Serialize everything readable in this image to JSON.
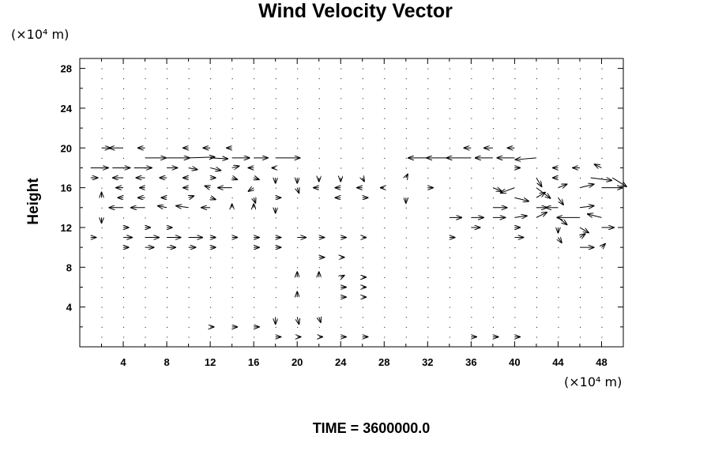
{
  "chart_data": {
    "type": "vector-field",
    "title": "Wind Velocity Vector",
    "xlabel": "",
    "ylabel": "Height",
    "x_unit": "(×10⁴ m)",
    "y_unit": "(×10⁴ m)",
    "xlim": [
      0,
      50
    ],
    "ylim": [
      0,
      29
    ],
    "x_ticks": [
      4,
      8,
      12,
      16,
      20,
      24,
      28,
      32,
      36,
      40,
      44,
      48
    ],
    "y_ticks": [
      4,
      8,
      12,
      16,
      20,
      24,
      28
    ],
    "footer": "TIME = 3600000.0",
    "grid": false,
    "vectors": [
      {
        "x": 2,
        "y": 20,
        "u": 1.0,
        "v": 0.0
      },
      {
        "x": 4,
        "y": 20,
        "u": -1.6,
        "v": 0.0
      },
      {
        "x": 6,
        "y": 19,
        "u": 2.4,
        "v": 0.0
      },
      {
        "x": 8,
        "y": 19,
        "u": 2.6,
        "v": 0.0
      },
      {
        "x": 10,
        "y": 19,
        "u": 3.0,
        "v": 0.1
      },
      {
        "x": 12,
        "y": 19,
        "u": 2.0,
        "v": -0.1
      },
      {
        "x": 14,
        "y": 19,
        "u": 2.0,
        "v": 0.0
      },
      {
        "x": 16,
        "y": 19,
        "u": 1.6,
        "v": 0.0
      },
      {
        "x": 18,
        "y": 19,
        "u": 2.8,
        "v": 0.0
      },
      {
        "x": 32,
        "y": 19,
        "u": -2.2,
        "v": 0.0
      },
      {
        "x": 34,
        "y": 19,
        "u": -2.6,
        "v": 0.0
      },
      {
        "x": 36,
        "y": 19,
        "u": -2.8,
        "v": 0.0
      },
      {
        "x": 38,
        "y": 19,
        "u": -2.0,
        "v": 0.0
      },
      {
        "x": 40,
        "y": 19,
        "u": -2.0,
        "v": 0.0
      },
      {
        "x": 42,
        "y": 19,
        "u": -2.4,
        "v": -0.2
      },
      {
        "x": 6,
        "y": 20,
        "u": -0.8,
        "v": 0.0
      },
      {
        "x": 10,
        "y": 20,
        "u": -0.6,
        "v": 0.0
      },
      {
        "x": 12,
        "y": 20,
        "u": -0.8,
        "v": 0.0
      },
      {
        "x": 14,
        "y": 20,
        "u": -0.6,
        "v": 0.0
      },
      {
        "x": 36,
        "y": 20,
        "u": -0.8,
        "v": 0.0
      },
      {
        "x": 38,
        "y": 20,
        "u": -1.0,
        "v": 0.0
      },
      {
        "x": 40,
        "y": 20,
        "u": -0.8,
        "v": 0.0
      },
      {
        "x": 1,
        "y": 18,
        "u": 2.0,
        "v": 0.0
      },
      {
        "x": 3,
        "y": 18,
        "u": 2.0,
        "v": 0.0
      },
      {
        "x": 5,
        "y": 18,
        "u": 2.0,
        "v": 0.0
      },
      {
        "x": 8,
        "y": 18,
        "u": 1.2,
        "v": 0.0
      },
      {
        "x": 10,
        "y": 18,
        "u": 1.0,
        "v": -0.2
      },
      {
        "x": 12,
        "y": 18,
        "u": 1.2,
        "v": -0.3
      },
      {
        "x": 14,
        "y": 18,
        "u": 0.8,
        "v": 0.2
      },
      {
        "x": 16,
        "y": 18,
        "u": -0.6,
        "v": 0.0
      },
      {
        "x": 18,
        "y": 18,
        "u": -0.4,
        "v": 0.0
      },
      {
        "x": 40,
        "y": 18,
        "u": 0.6,
        "v": 0.0
      },
      {
        "x": 44,
        "y": 18,
        "u": -0.6,
        "v": 0.0
      },
      {
        "x": 46,
        "y": 18,
        "u": -0.8,
        "v": 0.0
      },
      {
        "x": 48,
        "y": 18,
        "u": -0.8,
        "v": 0.4
      },
      {
        "x": 1,
        "y": 17,
        "u": 0.8,
        "v": 0.0
      },
      {
        "x": 4,
        "y": 17,
        "u": -1.2,
        "v": 0.0
      },
      {
        "x": 6,
        "y": 17,
        "u": -1.0,
        "v": 0.0
      },
      {
        "x": 8,
        "y": 17,
        "u": -0.8,
        "v": 0.0
      },
      {
        "x": 10,
        "y": 17,
        "u": -0.6,
        "v": 0.0
      },
      {
        "x": 12,
        "y": 17,
        "u": 0.6,
        "v": 0.0
      },
      {
        "x": 14,
        "y": 17,
        "u": 0.6,
        "v": -0.2
      },
      {
        "x": 16,
        "y": 17,
        "u": 0.6,
        "v": -0.2
      },
      {
        "x": 18,
        "y": 17,
        "u": 0.0,
        "v": -0.6
      },
      {
        "x": 20,
        "y": 17,
        "u": 0.0,
        "v": -0.6
      },
      {
        "x": 22,
        "y": 17,
        "u": 0.0,
        "v": -0.4
      },
      {
        "x": 24,
        "y": 17,
        "u": 0.0,
        "v": -0.4
      },
      {
        "x": 26,
        "y": 17,
        "u": 0.2,
        "v": -0.4
      },
      {
        "x": 30,
        "y": 17,
        "u": 0.2,
        "v": 0.4
      },
      {
        "x": 42,
        "y": 17,
        "u": 0.6,
        "v": -1.0
      },
      {
        "x": 44,
        "y": 17,
        "u": -0.6,
        "v": 0.0
      },
      {
        "x": 47,
        "y": 17,
        "u": 2.4,
        "v": -0.3
      },
      {
        "x": 49,
        "y": 17,
        "u": 1.6,
        "v": -1.0
      },
      {
        "x": 4,
        "y": 16,
        "u": -0.8,
        "v": 0.0
      },
      {
        "x": 6,
        "y": 16,
        "u": -0.6,
        "v": 0.0
      },
      {
        "x": 10,
        "y": 16,
        "u": -0.6,
        "v": 0.0
      },
      {
        "x": 12,
        "y": 16,
        "u": -0.6,
        "v": 0.2
      },
      {
        "x": 14,
        "y": 16,
        "u": -1.6,
        "v": 0.0
      },
      {
        "x": 16,
        "y": 16,
        "u": -0.6,
        "v": -0.4
      },
      {
        "x": 20,
        "y": 16,
        "u": 0.2,
        "v": -0.6
      },
      {
        "x": 22,
        "y": 16,
        "u": -0.6,
        "v": 0.0
      },
      {
        "x": 24,
        "y": 16,
        "u": -0.6,
        "v": 0.0
      },
      {
        "x": 26,
        "y": 16,
        "u": -0.6,
        "v": 0.0
      },
      {
        "x": 28,
        "y": 16,
        "u": -0.4,
        "v": 0.0
      },
      {
        "x": 32,
        "y": 16,
        "u": 0.6,
        "v": 0.0
      },
      {
        "x": 38,
        "y": 16,
        "u": 1.0,
        "v": -0.4
      },
      {
        "x": 40,
        "y": 16,
        "u": -1.6,
        "v": -0.6
      },
      {
        "x": 42,
        "y": 16,
        "u": 1.6,
        "v": -1.2
      },
      {
        "x": 44,
        "y": 16,
        "u": 1.0,
        "v": 0.4
      },
      {
        "x": 46,
        "y": 16,
        "u": 1.6,
        "v": 0.4
      },
      {
        "x": 48,
        "y": 16,
        "u": 2.4,
        "v": 0.0
      },
      {
        "x": 2,
        "y": 15,
        "u": 0.0,
        "v": 0.6
      },
      {
        "x": 4,
        "y": 15,
        "u": -0.6,
        "v": 0.0
      },
      {
        "x": 6,
        "y": 15,
        "u": -0.8,
        "v": 0.0
      },
      {
        "x": 8,
        "y": 15,
        "u": -0.6,
        "v": 0.0
      },
      {
        "x": 10,
        "y": 15,
        "u": 0.6,
        "v": 0.2
      },
      {
        "x": 12,
        "y": 15,
        "u": 0.6,
        "v": -0.2
      },
      {
        "x": 16,
        "y": 15,
        "u": 0.2,
        "v": -0.6
      },
      {
        "x": 18,
        "y": 15,
        "u": 0.6,
        "v": 0.0
      },
      {
        "x": 24,
        "y": 15,
        "u": -0.6,
        "v": 0.0
      },
      {
        "x": 26,
        "y": 15,
        "u": 0.6,
        "v": 0.0
      },
      {
        "x": 30,
        "y": 15,
        "u": 0.0,
        "v": -0.6
      },
      {
        "x": 40,
        "y": 15,
        "u": 1.6,
        "v": -0.4
      },
      {
        "x": 42,
        "y": 15,
        "u": 1.0,
        "v": 0.6
      },
      {
        "x": 44,
        "y": 15,
        "u": 0.6,
        "v": -0.8
      },
      {
        "x": 4,
        "y": 14,
        "u": -1.6,
        "v": 0.0
      },
      {
        "x": 6,
        "y": 14,
        "u": -1.6,
        "v": 0.0
      },
      {
        "x": 8,
        "y": 14,
        "u": -1.0,
        "v": 0.2
      },
      {
        "x": 10,
        "y": 14,
        "u": -1.4,
        "v": 0.2
      },
      {
        "x": 12,
        "y": 14,
        "u": -1.0,
        "v": 0.0
      },
      {
        "x": 14,
        "y": 14,
        "u": 0.0,
        "v": 0.4
      },
      {
        "x": 16,
        "y": 14,
        "u": 0.0,
        "v": 0.4
      },
      {
        "x": 18,
        "y": 14,
        "u": 0.0,
        "v": -0.6
      },
      {
        "x": 38,
        "y": 14,
        "u": 1.6,
        "v": 0.0
      },
      {
        "x": 42,
        "y": 14,
        "u": 1.2,
        "v": 0.0
      },
      {
        "x": 44,
        "y": 14,
        "u": -1.4,
        "v": 0.0
      },
      {
        "x": 46,
        "y": 14,
        "u": 1.6,
        "v": 0.2
      },
      {
        "x": 2,
        "y": 13,
        "u": 0.0,
        "v": -0.6
      },
      {
        "x": 34,
        "y": 13,
        "u": 1.4,
        "v": 0.0
      },
      {
        "x": 36,
        "y": 13,
        "u": 1.4,
        "v": 0.0
      },
      {
        "x": 38,
        "y": 13,
        "u": 1.4,
        "v": 0.0
      },
      {
        "x": 40,
        "y": 13,
        "u": 1.4,
        "v": 0.2
      },
      {
        "x": 42,
        "y": 13,
        "u": 1.2,
        "v": 0.6
      },
      {
        "x": 44,
        "y": 13,
        "u": 1.0,
        "v": -0.8
      },
      {
        "x": 46,
        "y": 13,
        "u": -2.6,
        "v": 0.0
      },
      {
        "x": 48,
        "y": 13,
        "u": -1.6,
        "v": 0.4
      },
      {
        "x": 4,
        "y": 12,
        "u": 0.6,
        "v": 0.0
      },
      {
        "x": 6,
        "y": 12,
        "u": 0.6,
        "v": 0.0
      },
      {
        "x": 8,
        "y": 12,
        "u": 0.6,
        "v": 0.0
      },
      {
        "x": 36,
        "y": 12,
        "u": 1.0,
        "v": 0.0
      },
      {
        "x": 40,
        "y": 12,
        "u": 0.6,
        "v": 0.0
      },
      {
        "x": 44,
        "y": 12,
        "u": 0.0,
        "v": -0.6
      },
      {
        "x": 46,
        "y": 12,
        "u": 1.0,
        "v": -0.6
      },
      {
        "x": 48,
        "y": 12,
        "u": 1.4,
        "v": 0.0
      },
      {
        "x": 1,
        "y": 11,
        "u": 0.6,
        "v": 0.0
      },
      {
        "x": 4,
        "y": 11,
        "u": 1.0,
        "v": 0.0
      },
      {
        "x": 6,
        "y": 11,
        "u": 1.6,
        "v": 0.0
      },
      {
        "x": 8,
        "y": 11,
        "u": 1.6,
        "v": 0.0
      },
      {
        "x": 10,
        "y": 11,
        "u": 1.6,
        "v": 0.0
      },
      {
        "x": 12,
        "y": 11,
        "u": 0.6,
        "v": 0.0
      },
      {
        "x": 14,
        "y": 11,
        "u": 0.6,
        "v": 0.0
      },
      {
        "x": 16,
        "y": 11,
        "u": 0.6,
        "v": 0.0
      },
      {
        "x": 18,
        "y": 11,
        "u": 0.6,
        "v": 0.0
      },
      {
        "x": 20,
        "y": 11,
        "u": 1.0,
        "v": 0.0
      },
      {
        "x": 22,
        "y": 11,
        "u": 0.6,
        "v": 0.0
      },
      {
        "x": 24,
        "y": 11,
        "u": 0.6,
        "v": 0.0
      },
      {
        "x": 26,
        "y": 11,
        "u": 0.4,
        "v": 0.0
      },
      {
        "x": 34,
        "y": 11,
        "u": 0.6,
        "v": 0.0
      },
      {
        "x": 40,
        "y": 11,
        "u": 1.0,
        "v": 0.0
      },
      {
        "x": 44,
        "y": 11,
        "u": 0.4,
        "v": -0.6
      },
      {
        "x": 46,
        "y": 11,
        "u": 0.6,
        "v": 0.4
      },
      {
        "x": 4,
        "y": 10,
        "u": 0.6,
        "v": 0.0
      },
      {
        "x": 6,
        "y": 10,
        "u": 1.0,
        "v": 0.0
      },
      {
        "x": 8,
        "y": 10,
        "u": 1.0,
        "v": 0.0
      },
      {
        "x": 10,
        "y": 10,
        "u": 0.8,
        "v": 0.0
      },
      {
        "x": 12,
        "y": 10,
        "u": 0.6,
        "v": 0.0
      },
      {
        "x": 16,
        "y": 10,
        "u": 0.6,
        "v": 0.0
      },
      {
        "x": 18,
        "y": 10,
        "u": 0.6,
        "v": 0.0
      },
      {
        "x": 46,
        "y": 10,
        "u": 1.6,
        "v": 0.0
      },
      {
        "x": 48,
        "y": 10,
        "u": 0.4,
        "v": 0.4
      },
      {
        "x": 22,
        "y": 9,
        "u": 0.6,
        "v": 0.0
      },
      {
        "x": 24,
        "y": 9,
        "u": 0.4,
        "v": 0.0
      },
      {
        "x": 20,
        "y": 7,
        "u": 0.0,
        "v": 0.6
      },
      {
        "x": 22,
        "y": 7,
        "u": 0.0,
        "v": 0.6
      },
      {
        "x": 24,
        "y": 7,
        "u": 0.4,
        "v": 0.2
      },
      {
        "x": 26,
        "y": 7,
        "u": 0.4,
        "v": 0.0
      },
      {
        "x": 24,
        "y": 6,
        "u": 0.6,
        "v": 0.0
      },
      {
        "x": 26,
        "y": 6,
        "u": 0.4,
        "v": 0.0
      },
      {
        "x": 24,
        "y": 5,
        "u": 0.6,
        "v": 0.0
      },
      {
        "x": 26,
        "y": 5,
        "u": 0.4,
        "v": 0.0
      },
      {
        "x": 20,
        "y": 5,
        "u": 0.0,
        "v": 0.6
      },
      {
        "x": 18,
        "y": 3,
        "u": 0.0,
        "v": -0.8
      },
      {
        "x": 20,
        "y": 3,
        "u": 0.2,
        "v": -0.8
      },
      {
        "x": 22,
        "y": 3,
        "u": 0.2,
        "v": -0.6
      },
      {
        "x": 12,
        "y": 2,
        "u": 0.4,
        "v": 0.0
      },
      {
        "x": 14,
        "y": 2,
        "u": 0.6,
        "v": 0.0
      },
      {
        "x": 16,
        "y": 2,
        "u": 0.6,
        "v": 0.0
      },
      {
        "x": 18,
        "y": 1,
        "u": 0.6,
        "v": 0.0
      },
      {
        "x": 20,
        "y": 1,
        "u": 0.4,
        "v": 0.0
      },
      {
        "x": 22,
        "y": 1,
        "u": 0.4,
        "v": 0.0
      },
      {
        "x": 24,
        "y": 1,
        "u": 0.6,
        "v": 0.0
      },
      {
        "x": 26,
        "y": 1,
        "u": 0.6,
        "v": 0.0
      },
      {
        "x": 36,
        "y": 1,
        "u": 0.6,
        "v": 0.0
      },
      {
        "x": 38,
        "y": 1,
        "u": 0.6,
        "v": 0.0
      },
      {
        "x": 40,
        "y": 1,
        "u": 0.6,
        "v": 0.0
      }
    ]
  }
}
